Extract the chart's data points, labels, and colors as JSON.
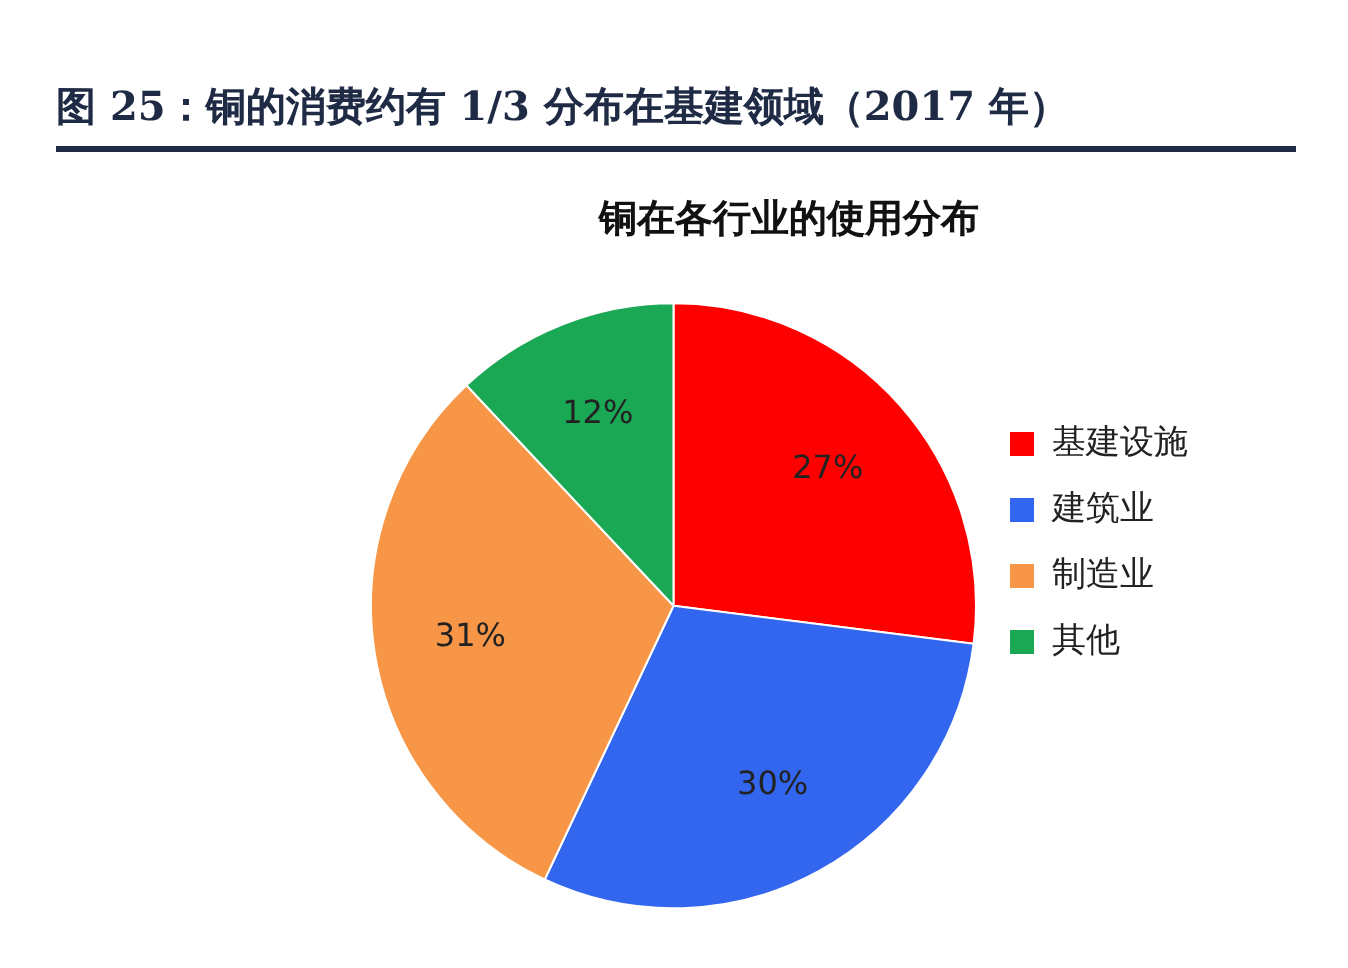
{
  "chart_data": {
    "type": "pie",
    "title": "图 25：铜的消费约有 1/3 分布在基建领域（2017 年）",
    "subtitle": "铜在各行业的使用分布",
    "categories": [
      "基建设施",
      "建筑业",
      "制造业",
      "其他"
    ],
    "values": [
      27,
      30,
      31,
      12
    ],
    "value_labels": [
      "27%",
      "30%",
      "31%",
      "12%"
    ],
    "colors": [
      "#ff0000",
      "#3366ee",
      "#f79646",
      "#1aa855"
    ],
    "legend": "right"
  }
}
